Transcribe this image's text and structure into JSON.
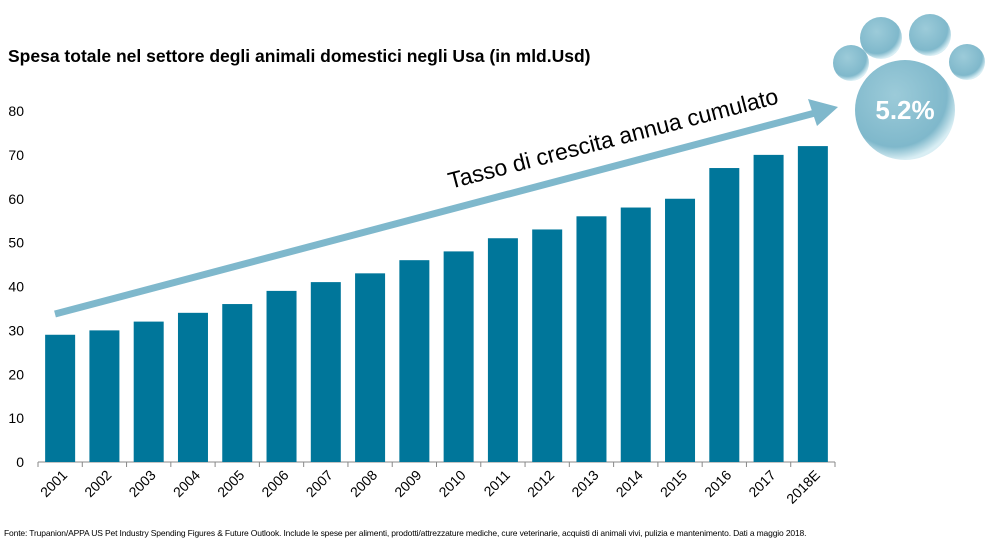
{
  "chart_data": {
    "type": "bar",
    "title": "Spesa totale nel settore degli animali domestici negli Usa (in mld.Usd)",
    "xlabel": "",
    "ylabel": "",
    "ylim": [
      0,
      80
    ],
    "yticks": [
      0,
      10,
      20,
      30,
      40,
      50,
      60,
      70,
      80
    ],
    "categories": [
      "2001",
      "2002",
      "2003",
      "2004",
      "2005",
      "2006",
      "2007",
      "2008",
      "2009",
      "2010",
      "2011",
      "2012",
      "2013",
      "2014",
      "2015",
      "2016",
      "2017",
      "2018E"
    ],
    "values": [
      29,
      30,
      32,
      34,
      36,
      39,
      41,
      43,
      46,
      48,
      51,
      53,
      56,
      58,
      60,
      67,
      70,
      72
    ],
    "bar_color": "#00769A",
    "arrow_color": "#7FB8CC",
    "annotation": "Tasso di crescita annua cumulato",
    "badge": "5.2%",
    "badge_color": "#82BACB",
    "grid": false
  },
  "footnote": "Fonte: Trupanion/APPA US Pet Industry Spending Figures & Future Outlook. Include le spese per alimenti, prodotti/attrezzature mediche, cure veterinarie, acquisti di animali vivi, pulizia e mantenimento. Dati a maggio 2018."
}
